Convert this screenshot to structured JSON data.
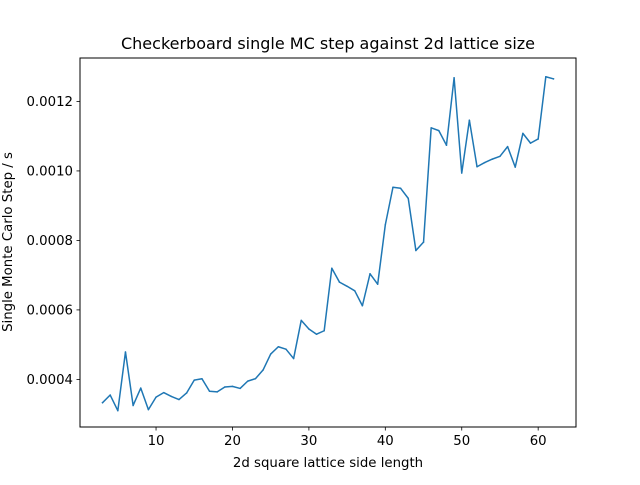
{
  "chart_data": {
    "type": "line",
    "title": "Checkerboard single MC step against 2d lattice size",
    "xlabel": "2d square lattice side length",
    "ylabel": "Single Monte Carlo Step / s",
    "xlim": [
      0.05,
      64.95
    ],
    "ylim": [
      0.000263,
      0.001325
    ],
    "xticks": [
      10,
      20,
      30,
      40,
      50,
      60
    ],
    "xtick_labels": [
      "10",
      "20",
      "30",
      "40",
      "50",
      "60"
    ],
    "yticks": [
      0.0004,
      0.0006,
      0.0008,
      0.001,
      0.0012
    ],
    "ytick_labels": [
      "0.0004",
      "0.0006",
      "0.0008",
      "0.0010",
      "0.0012"
    ],
    "grid": false,
    "series": [
      {
        "color": "#1f77b4",
        "x": [
          3,
          4,
          5,
          6,
          7,
          8,
          9,
          10,
          11,
          12,
          13,
          14,
          15,
          16,
          17,
          18,
          19,
          20,
          21,
          22,
          23,
          24,
          25,
          26,
          27,
          28,
          29,
          30,
          31,
          32,
          33,
          34,
          35,
          36,
          37,
          38,
          39,
          40,
          41,
          42,
          43,
          44,
          45,
          46,
          47,
          48,
          49,
          50,
          51,
          52,
          53,
          54,
          55,
          56,
          57,
          58,
          59,
          60,
          61,
          62
        ],
        "y": [
          0.000333,
          0.000355,
          0.00031,
          0.000479,
          0.000325,
          0.000375,
          0.000313,
          0.000349,
          0.000362,
          0.000351,
          0.000342,
          0.000361,
          0.000398,
          0.000402,
          0.000366,
          0.000364,
          0.000378,
          0.00038,
          0.000374,
          0.000395,
          0.000402,
          0.000427,
          0.000473,
          0.000494,
          0.000487,
          0.00046,
          0.00057,
          0.000545,
          0.00053,
          0.00054,
          0.00072,
          0.00068,
          0.000668,
          0.000655,
          0.000612,
          0.000704,
          0.000674,
          0.000845,
          0.000953,
          0.00095,
          0.000921,
          0.000771,
          0.000795,
          0.001124,
          0.001116,
          0.001074,
          0.001268,
          0.000994,
          0.001146,
          0.001012,
          0.001024,
          0.001034,
          0.001042,
          0.00107,
          0.001011,
          0.001108,
          0.00108,
          0.001092,
          0.001271,
          0.001265
        ]
      }
    ]
  }
}
